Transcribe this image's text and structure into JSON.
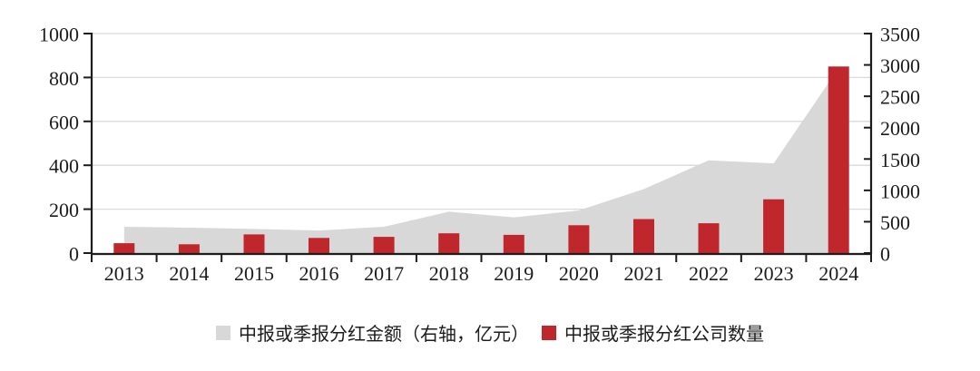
{
  "chart_data": {
    "type": "combo",
    "title": "",
    "categories": [
      "2013",
      "2014",
      "2015",
      "2016",
      "2017",
      "2018",
      "2019",
      "2020",
      "2021",
      "2022",
      "2023",
      "2024"
    ],
    "series": [
      {
        "name": "中报或季报分红金额（右轴，亿元）",
        "type": "area",
        "axis": "right",
        "color": "#d8d8d8",
        "values": [
          420,
          405,
          385,
          360,
          420,
          660,
          570,
          680,
          1020,
          1480,
          1430,
          2950
        ]
      },
      {
        "name": "中报或季报分红公司数量",
        "type": "bar",
        "axis": "left",
        "color": "#c0272d",
        "values": [
          45,
          40,
          85,
          69,
          74,
          90,
          83,
          127,
          155,
          136,
          245,
          850
        ]
      }
    ],
    "left_axis": {
      "min": 0,
      "max": 1000,
      "ticks": [
        0,
        200,
        400,
        600,
        800,
        1000
      ]
    },
    "right_axis": {
      "min": 0,
      "max": 3500,
      "ticks": [
        0,
        500,
        1000,
        1500,
        2000,
        2500,
        3000,
        3500
      ]
    },
    "grid": "horizontal",
    "legend_position": "bottom",
    "colors": {
      "axis": "#1c1c1c",
      "gridline": "#d9d9d9",
      "text": "#1c1c1c",
      "background": "#ffffff"
    }
  }
}
